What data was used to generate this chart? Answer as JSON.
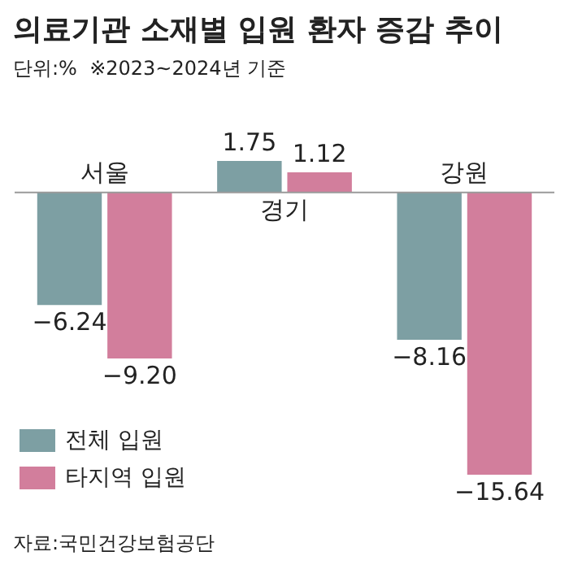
{
  "chart_data": {
    "type": "bar",
    "title": "의료기관 소재별 입원 환자 증감 추이",
    "subtitle": "단위:%  ※2023~2024년 기준",
    "categories": [
      "서울",
      "경기",
      "강원"
    ],
    "series": [
      {
        "name": "전체 입원",
        "color": "#7d9fa3",
        "values": [
          -6.24,
          1.75,
          -8.16
        ],
        "value_labels": [
          "−6.24",
          "1.75",
          "−8.16"
        ]
      },
      {
        "name": "타지역 입원",
        "color": "#d27e9c",
        "values": [
          -9.2,
          1.12,
          -15.64
        ],
        "value_labels": [
          "−9.20",
          "1.12",
          "−15.64"
        ]
      }
    ],
    "legend": "bottom left",
    "annotations": [
      "자료:국민건강보험공단"
    ]
  }
}
